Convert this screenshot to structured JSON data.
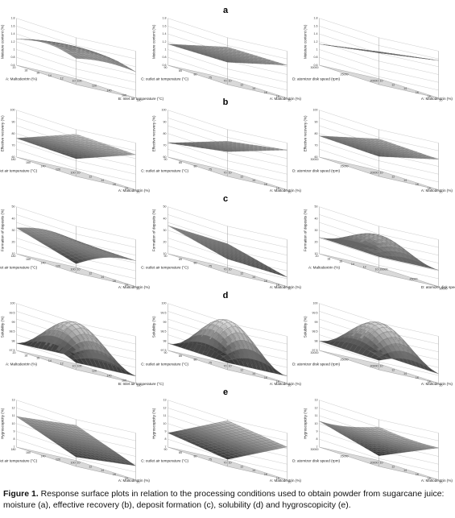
{
  "figure": {
    "rows": [
      {
        "letter": "a",
        "plots": [
          {
            "z_label": "Moisture content (%)",
            "x_label": "B: Inlet air temperature (°C)",
            "y_label": "A: Maltodextrin (%)",
            "z_ticks": [
              "0.6",
              "0.8",
              "1",
              "1.2",
              "1.4",
              "1.6",
              "1.8"
            ],
            "x_ticks": [
              "100",
              "120",
              "140",
              "160",
              "180"
            ],
            "y_ticks": [
              "10",
              "12",
              "14",
              "16",
              "18",
              "20"
            ]
          },
          {
            "z_label": "Moisture content (%)",
            "x_label": "A: Maltodextrin (%)",
            "y_label": "C: outlet air temperature (°C)",
            "z_ticks": [
              "0.6",
              "0.8",
              "1",
              "1.2",
              "1.4",
              "1.6",
              "1.8"
            ],
            "x_ticks": [
              "10",
              "12",
              "14",
              "16",
              "18",
              "20"
            ],
            "y_ticks": [
              "70",
              "75",
              "80",
              "85",
              "90"
            ]
          },
          {
            "z_label": "Moisture content (%)",
            "x_label": "A: Maltodextrin (%)",
            "y_label": "D: atomizer disk speed (rpm)",
            "z_ticks": [
              "0.6",
              "0.8",
              "1",
              "1.2",
              "1.4",
              "1.6",
              "1.8"
            ],
            "x_ticks": [
              "10",
              "12",
              "14",
              "16",
              "18",
              "20"
            ],
            "y_ticks": [
              "20000",
              "25000",
              "30000"
            ]
          }
        ]
      },
      {
        "letter": "b",
        "plots": [
          {
            "z_label": "Effective recovery (%)",
            "x_label": "A: Maltodextrin (%)",
            "y_label": "B: Inlet air temperature (°C)",
            "z_ticks": [
              "60",
              "70",
              "80",
              "90",
              "100"
            ],
            "x_ticks": [
              "10",
              "12",
              "14",
              "16",
              "18",
              "20"
            ],
            "y_ticks": [
              "100",
              "120",
              "140",
              "160",
              "180"
            ]
          },
          {
            "z_label": "Effective recovery (%)",
            "x_label": "A: Maltodextrin (%)",
            "y_label": "C: outlet air temperature (°C)",
            "z_ticks": [
              "60",
              "70",
              "80",
              "90",
              "100"
            ],
            "x_ticks": [
              "10",
              "12",
              "14",
              "16",
              "18",
              "20"
            ],
            "y_ticks": [
              "70",
              "75",
              "80",
              "85",
              "90"
            ]
          },
          {
            "z_label": "Effective recovery (%)",
            "x_label": "A: Maltodextrin (%)",
            "y_label": "D: atomizer disk speed (rpm)",
            "z_ticks": [
              "60",
              "70",
              "80",
              "90",
              "100"
            ],
            "x_ticks": [
              "10",
              "12",
              "14",
              "16",
              "18",
              "20"
            ],
            "y_ticks": [
              "20000",
              "25000",
              "30000"
            ]
          }
        ]
      },
      {
        "letter": "c",
        "plots": [
          {
            "z_label": "Formation of deposits (%)",
            "x_label": "A: Maltodextrin (%)",
            "y_label": "B: Inlet air temperature (°C)",
            "z_ticks": [
              "10",
              "20",
              "30",
              "40",
              "50"
            ],
            "x_ticks": [
              "10",
              "12",
              "14",
              "16",
              "18",
              "20"
            ],
            "y_ticks": [
              "100",
              "120",
              "140",
              "160",
              "180"
            ]
          },
          {
            "z_label": "Formation of deposits (%)",
            "x_label": "A: Maltodextrin (%)",
            "y_label": "C: outlet air temperature (°C)",
            "z_ticks": [
              "10",
              "20",
              "30",
              "40",
              "50"
            ],
            "x_ticks": [
              "10",
              "12",
              "14",
              "16",
              "18",
              "20"
            ],
            "y_ticks": [
              "70",
              "75",
              "80",
              "85",
              "90"
            ]
          },
          {
            "z_label": "Formation of deposits (%)",
            "x_label": "D: atomizer disk speed (rpm)",
            "y_label": "A: Maltodextrin (%)",
            "z_ticks": [
              "10",
              "20",
              "30",
              "40",
              "50"
            ],
            "x_ticks": [
              "20000",
              "25000",
              "30000"
            ],
            "y_ticks": [
              "10",
              "12",
              "14",
              "16",
              "18",
              "20"
            ]
          }
        ]
      },
      {
        "letter": "d",
        "plots": [
          {
            "z_label": "Solubility (%)",
            "x_label": "B: Inlet air temperature (°C)",
            "y_label": "A: Maltodextrin (%)",
            "z_ticks": [
              "97.5",
              "98",
              "98.5",
              "99",
              "99.5",
              "100"
            ],
            "x_ticks": [
              "100",
              "120",
              "140",
              "160",
              "180"
            ],
            "y_ticks": [
              "10",
              "12",
              "14",
              "16",
              "18",
              "20"
            ]
          },
          {
            "z_label": "Solubility (%)",
            "x_label": "A: Maltodextrin (%)",
            "y_label": "C: outlet air temperature (°C)",
            "z_ticks": [
              "97.5",
              "98",
              "98.5",
              "99",
              "99.5",
              "100"
            ],
            "x_ticks": [
              "10",
              "12",
              "14",
              "16",
              "18",
              "20"
            ],
            "y_ticks": [
              "70",
              "75",
              "80",
              "85",
              "90"
            ]
          },
          {
            "z_label": "Solubility (%)",
            "x_label": "A: Maltodextrin (%)",
            "y_label": "D: atomizer disk speed (rpm)",
            "z_ticks": [
              "97.5",
              "98",
              "98.5",
              "99",
              "99.5",
              "100"
            ],
            "x_ticks": [
              "10",
              "12",
              "14",
              "16",
              "18",
              "20"
            ],
            "y_ticks": [
              "20000",
              "25000",
              "30000"
            ]
          }
        ]
      },
      {
        "letter": "e",
        "plots": [
          {
            "z_label": "Hygroscopicity (%)",
            "x_label": "A: Maltodextrin (%)",
            "y_label": "B: Inlet air temperature (°C)",
            "z_ticks": [
              "7",
              "8",
              "9",
              "10",
              "11",
              "12",
              "13"
            ],
            "x_ticks": [
              "10",
              "12",
              "14",
              "16",
              "18",
              "20"
            ],
            "y_ticks": [
              "100",
              "120",
              "140",
              "160",
              "180"
            ]
          },
          {
            "z_label": "Hygroscopicity (%)",
            "x_label": "A: Maltodextrin (%)",
            "y_label": "C: outlet air temperature (°C)",
            "z_ticks": [
              "7",
              "8",
              "9",
              "10",
              "11",
              "12",
              "13"
            ],
            "x_ticks": [
              "10",
              "12",
              "14",
              "16",
              "18",
              "20"
            ],
            "y_ticks": [
              "70",
              "75",
              "80",
              "85",
              "90"
            ]
          },
          {
            "z_label": "Hygroscopicity (%)",
            "x_label": "A: Maltodextrin (%)",
            "y_label": "D: atomizer disk speed (rpm)",
            "z_ticks": [
              "7",
              "8",
              "9",
              "10",
              "11",
              "12",
              "13"
            ],
            "x_ticks": [
              "10",
              "12",
              "14",
              "16",
              "18",
              "20"
            ],
            "y_ticks": [
              "20000",
              "25000",
              "30000"
            ]
          }
        ]
      }
    ],
    "surface_colors": {
      "dark": "#111111",
      "light": "#e6e6e6",
      "mesh": "#6a6a6a",
      "floor": "#d9d9d9"
    }
  },
  "caption": {
    "label": "Figure 1.",
    "text": " Response surface plots in relation to the processing conditions used to obtain powder from sugarcane juice: moisture (a), effective recovery (b), deposit formation (c), solubility (d) and hygroscopicity (e)."
  }
}
